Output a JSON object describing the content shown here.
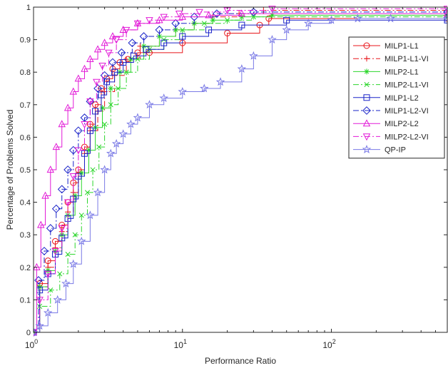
{
  "chart_data": {
    "type": "line",
    "title": "",
    "xlabel": "Performance Ratio",
    "ylabel": "Percentage of Problems Solved",
    "xscale": "log",
    "xlim": [
      1,
      600
    ],
    "ylim": [
      0,
      1
    ],
    "x_ticks": [
      {
        "value": 1,
        "base": "10",
        "exp": "0"
      },
      {
        "value": 10,
        "base": "10",
        "exp": "1"
      },
      {
        "value": 100,
        "base": "10",
        "exp": "2"
      }
    ],
    "y_ticks": [
      "0",
      "0.1",
      "0.2",
      "0.3",
      "0.4",
      "0.5",
      "0.6",
      "0.7",
      "0.8",
      "0.9",
      "1"
    ],
    "grid": false,
    "legend_position": "top-right",
    "series": [
      {
        "name": "MILP1-L1",
        "color": "#e8161b",
        "dash": "solid",
        "marker": "circle",
        "x": [
          1,
          1.1,
          1.25,
          1.4,
          1.55,
          1.7,
          1.85,
          2.0,
          2.2,
          2.4,
          2.6,
          2.85,
          3.1,
          3.4,
          3.8,
          4.3,
          5.0,
          6.0,
          10,
          20,
          33,
          38,
          600
        ],
        "y": [
          0,
          0.15,
          0.22,
          0.28,
          0.33,
          0.4,
          0.46,
          0.5,
          0.57,
          0.64,
          0.7,
          0.75,
          0.78,
          0.81,
          0.83,
          0.84,
          0.86,
          0.86,
          0.89,
          0.92,
          0.945,
          0.965,
          0.965
        ]
      },
      {
        "name": "MILP1-L1-VI",
        "color": "#e8161b",
        "dash": "dashdot",
        "marker": "plus",
        "x": [
          1,
          1.1,
          1.25,
          1.4,
          1.55,
          1.7,
          1.85,
          2.0,
          2.2,
          2.4,
          2.7,
          3.0,
          3.5,
          4.2,
          5.2,
          7.0,
          9.0,
          12,
          16,
          24,
          35,
          600
        ],
        "y": [
          0,
          0.14,
          0.2,
          0.26,
          0.31,
          0.37,
          0.43,
          0.49,
          0.55,
          0.62,
          0.68,
          0.74,
          0.79,
          0.84,
          0.88,
          0.91,
          0.93,
          0.95,
          0.97,
          0.98,
          0.99,
          0.99
        ]
      },
      {
        "name": "MILP2-L1",
        "color": "#2bd62b",
        "dash": "solid",
        "marker": "asterisk",
        "x": [
          1,
          1.1,
          1.25,
          1.4,
          1.55,
          1.7,
          1.9,
          2.1,
          2.35,
          2.6,
          2.9,
          3.3,
          3.8,
          4.5,
          5.5,
          7.0,
          9.0,
          12,
          16,
          25,
          40,
          600
        ],
        "y": [
          0,
          0.14,
          0.19,
          0.25,
          0.3,
          0.36,
          0.42,
          0.49,
          0.56,
          0.63,
          0.69,
          0.75,
          0.8,
          0.84,
          0.88,
          0.91,
          0.93,
          0.95,
          0.96,
          0.97,
          0.975,
          0.975
        ]
      },
      {
        "name": "MILP2-L1-VI",
        "color": "#2bd62b",
        "dash": "dashdot",
        "marker": "x",
        "x": [
          1,
          1.1,
          1.3,
          1.5,
          1.7,
          1.9,
          2.1,
          2.3,
          2.5,
          2.75,
          3.0,
          3.3,
          3.7,
          4.2,
          5.0,
          6.0,
          7.5,
          10,
          14,
          20,
          30,
          600
        ],
        "y": [
          0,
          0.08,
          0.13,
          0.18,
          0.24,
          0.3,
          0.36,
          0.43,
          0.5,
          0.57,
          0.64,
          0.7,
          0.75,
          0.8,
          0.84,
          0.87,
          0.9,
          0.93,
          0.95,
          0.96,
          0.97,
          0.97
        ]
      },
      {
        "name": "MILP1-L2",
        "color": "#1a23c8",
        "dash": "solid",
        "marker": "square",
        "x": [
          1,
          1.1,
          1.25,
          1.4,
          1.55,
          1.7,
          1.85,
          2.0,
          2.2,
          2.4,
          2.6,
          2.85,
          3.1,
          3.5,
          4.0,
          4.7,
          5.7,
          7.5,
          10,
          15,
          25,
          50,
          600
        ],
        "y": [
          0,
          0.13,
          0.18,
          0.24,
          0.29,
          0.35,
          0.41,
          0.48,
          0.55,
          0.62,
          0.68,
          0.73,
          0.77,
          0.8,
          0.83,
          0.85,
          0.87,
          0.89,
          0.91,
          0.93,
          0.945,
          0.96,
          0.96
        ]
      },
      {
        "name": "MILP1-L2-VI",
        "color": "#1a23c8",
        "dash": "dashdot",
        "marker": "diamond",
        "x": [
          1,
          1.08,
          1.18,
          1.3,
          1.42,
          1.55,
          1.7,
          1.85,
          2.0,
          2.2,
          2.4,
          2.7,
          3.0,
          3.4,
          3.9,
          4.6,
          5.5,
          7.0,
          9.0,
          12,
          17,
          30,
          600
        ],
        "y": [
          0,
          0.16,
          0.25,
          0.32,
          0.38,
          0.44,
          0.5,
          0.56,
          0.62,
          0.66,
          0.71,
          0.75,
          0.79,
          0.83,
          0.86,
          0.89,
          0.91,
          0.93,
          0.95,
          0.97,
          0.98,
          0.985,
          0.985
        ]
      },
      {
        "name": "MILP2-L2",
        "color": "#e21ad7",
        "dash": "solid",
        "marker": "triangle-up",
        "x": [
          1,
          1.05,
          1.12,
          1.2,
          1.3,
          1.42,
          1.55,
          1.7,
          1.85,
          2.0,
          2.2,
          2.4,
          2.7,
          3.0,
          3.4,
          4.0,
          5.0,
          7.0,
          10,
          15,
          25,
          600
        ],
        "y": [
          0,
          0.2,
          0.33,
          0.42,
          0.5,
          0.57,
          0.64,
          0.69,
          0.74,
          0.78,
          0.81,
          0.84,
          0.87,
          0.89,
          0.91,
          0.93,
          0.95,
          0.96,
          0.97,
          0.975,
          0.98,
          0.98
        ]
      },
      {
        "name": "MILP2-L2-VI",
        "color": "#e21ad7",
        "dash": "dashdot",
        "marker": "triangle-down",
        "x": [
          1,
          1.1,
          1.25,
          1.4,
          1.55,
          1.7,
          1.85,
          2.0,
          2.2,
          2.4,
          2.65,
          2.9,
          3.2,
          3.6,
          4.2,
          5.0,
          6.0,
          7.5,
          9.5,
          13,
          20,
          40,
          600
        ],
        "y": [
          0,
          0.1,
          0.18,
          0.25,
          0.32,
          0.4,
          0.48,
          0.56,
          0.64,
          0.71,
          0.77,
          0.82,
          0.86,
          0.9,
          0.93,
          0.95,
          0.96,
          0.97,
          0.98,
          0.985,
          0.99,
          0.995,
          0.995
        ]
      },
      {
        "name": "QP-IP",
        "color": "#7a7ae6",
        "dash": "solid",
        "marker": "star",
        "x": [
          1,
          1.1,
          1.25,
          1.45,
          1.65,
          1.85,
          2.1,
          2.4,
          2.7,
          3.0,
          3.3,
          3.6,
          4.0,
          4.5,
          5.0,
          6.0,
          7.5,
          10,
          14,
          18,
          25,
          30,
          40,
          50,
          70,
          100,
          150,
          250,
          600
        ],
        "y": [
          0,
          0.02,
          0.06,
          0.1,
          0.15,
          0.21,
          0.28,
          0.36,
          0.43,
          0.5,
          0.55,
          0.58,
          0.61,
          0.64,
          0.66,
          0.7,
          0.72,
          0.74,
          0.75,
          0.77,
          0.81,
          0.85,
          0.9,
          0.93,
          0.95,
          0.96,
          0.965,
          0.965,
          0.965
        ]
      }
    ]
  }
}
